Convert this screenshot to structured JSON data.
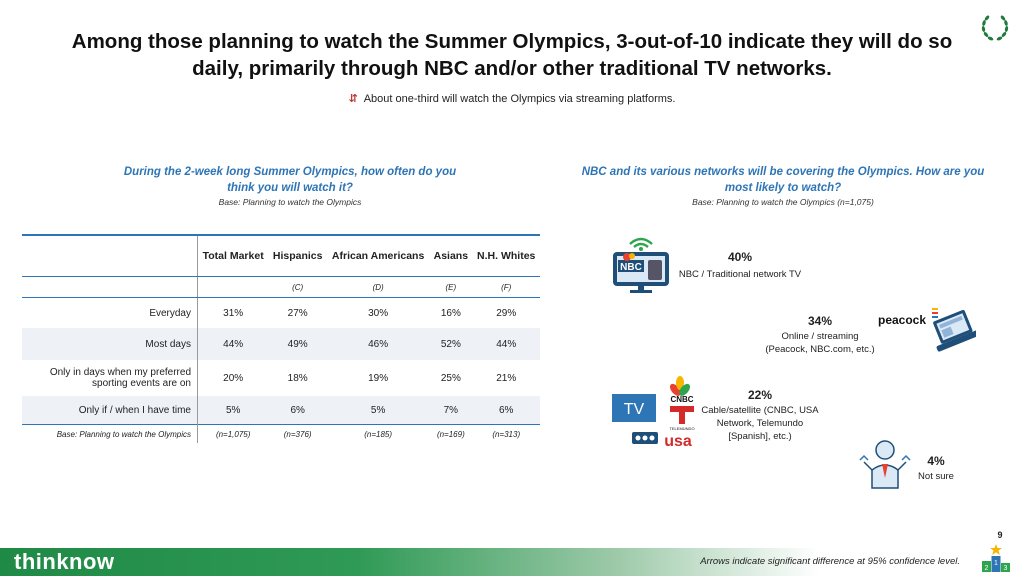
{
  "title": "Among those planning to watch the Summer Olympics, 3-out-of-10 indicate they will do so daily, primarily through NBC and/or other traditional TV networks.",
  "subtitle": "About one-third will watch the Olympics via streaming platforms.",
  "left": {
    "question": "During the 2-week long Summer Olympics, how often do you think you will watch it?",
    "base": "Base: Planning to watch the Olympics",
    "columns": [
      {
        "label": "Total Market",
        "letter": ""
      },
      {
        "label": "Hispanics",
        "letter": "(C)"
      },
      {
        "label": "African Americans",
        "letter": "(D)"
      },
      {
        "label": "Asians",
        "letter": "(E)"
      },
      {
        "label": "N.H. Whites",
        "letter": "(F)"
      }
    ],
    "rows": [
      {
        "label": "Everyday",
        "values": [
          "31%",
          "27%",
          "30%",
          "16%",
          "29%"
        ]
      },
      {
        "label": "Most days",
        "values": [
          "44%",
          "49%",
          "46%",
          "52%",
          "44%"
        ]
      },
      {
        "label": "Only in days when my preferred sporting events are on",
        "values": [
          "20%",
          "18%",
          "19%",
          "25%",
          "21%"
        ]
      },
      {
        "label": "Only if / when I have time",
        "values": [
          "5%",
          "6%",
          "5%",
          "7%",
          "6%"
        ]
      }
    ],
    "base_row": {
      "label": "Base: Planning to watch the Olympics",
      "values": [
        "(n=1,075)",
        "(n=376)",
        "(n=185)",
        "(n=169)",
        "(n=313)"
      ]
    }
  },
  "right": {
    "question": "NBC and its various networks will be covering the Olympics. How are you most likely to watch?",
    "base": "Base: Planning to watch the Olympics (n=1,075)",
    "items": [
      {
        "pct": "40%",
        "label": "NBC / Traditional network TV",
        "icon": "nbc-tv-icon"
      },
      {
        "pct": "34%",
        "label": "Online / streaming (Peacock, NBC.com, etc.)",
        "icon": "peacock-laptop-icon"
      },
      {
        "pct": "22%",
        "label": "Cable/satellite (CNBC, USA Network, Telemundo [Spanish], etc.)",
        "icon": "cable-networks-icon"
      },
      {
        "pct": "4%",
        "label": "Not sure",
        "icon": "confused-person-icon"
      }
    ],
    "logo_texts": {
      "nbc": "NBC",
      "peacock": "peacock",
      "cnbc": "CNBC",
      "tv": "TV",
      "telemundo": "TELEMUNDO",
      "usa": "usa"
    }
  },
  "footer": {
    "brand": "thinknow",
    "note": "Arrows indicate significant difference at 95% confidence level.",
    "page_number": "9",
    "podium_labels": [
      "2",
      "1",
      "3"
    ]
  },
  "colors": {
    "accent": "#2e75b6",
    "brand_green": "#1f8a46",
    "arrow": "#c0392b"
  }
}
